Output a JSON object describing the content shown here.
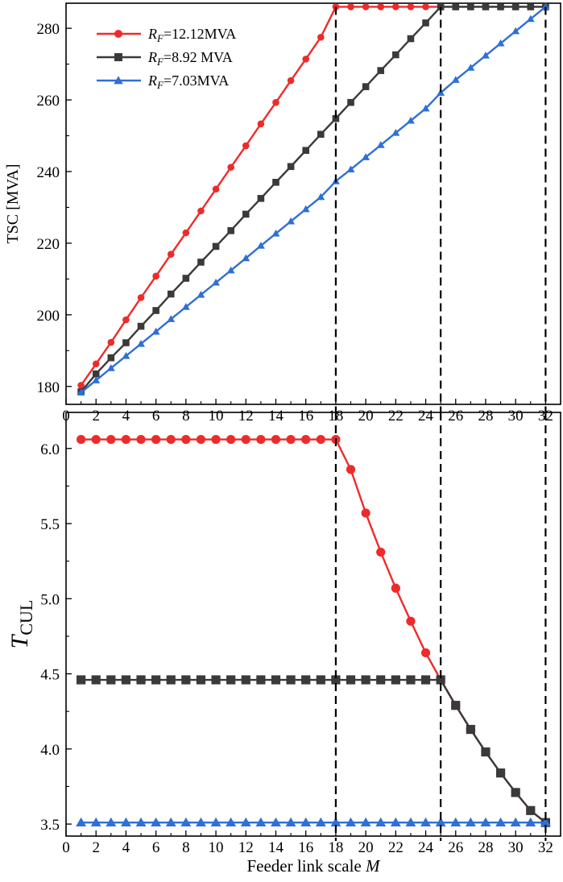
{
  "chart_data": [
    {
      "type": "line",
      "xlabel": "",
      "ylabel": "TSC [MVA]",
      "xlim": [
        0,
        33
      ],
      "ylim": [
        175,
        287
      ],
      "xticks": [
        0,
        2,
        4,
        6,
        8,
        10,
        12,
        14,
        16,
        18,
        20,
        22,
        24,
        26,
        28,
        30,
        32
      ],
      "yticks": [
        180,
        200,
        220,
        240,
        260,
        280
      ],
      "vlines": [
        18,
        25,
        32
      ],
      "legend_position": "top-left",
      "legend_labels": {
        "s0": {
          "symbol": "R",
          "sub": "F",
          "text": "=12.12MVA"
        },
        "s1": {
          "symbol": "R",
          "sub": "F",
          "text": "=8.92 MVA"
        },
        "s2": {
          "symbol": "R",
          "sub": "F",
          "text": "=7.03MVA"
        }
      },
      "series": [
        {
          "name": "RF=12.12MVA",
          "color": "#ee2b2b",
          "marker": "circle",
          "x": [
            1,
            2,
            3,
            4,
            5,
            6,
            7,
            8,
            9,
            10,
            11,
            12,
            13,
            14,
            15,
            16,
            17,
            18,
            19,
            20,
            21,
            22,
            23,
            24,
            25,
            26,
            27,
            28,
            29,
            30,
            31,
            32
          ],
          "y": [
            180.3,
            186.3,
            192.3,
            198.6,
            204.8,
            210.8,
            216.9,
            222.9,
            229.0,
            235.1,
            241.2,
            247.2,
            253.3,
            259.3,
            265.4,
            271.4,
            277.5,
            286,
            286,
            286,
            286,
            286,
            286,
            286,
            286,
            286,
            286,
            286,
            286,
            286,
            286,
            286
          ]
        },
        {
          "name": "RF=8.92 MVA",
          "color": "#3a3a3a",
          "marker": "square",
          "x": [
            1,
            2,
            3,
            4,
            5,
            6,
            7,
            8,
            9,
            10,
            11,
            12,
            13,
            14,
            15,
            16,
            17,
            18,
            19,
            20,
            21,
            22,
            23,
            24,
            25,
            26,
            27,
            28,
            29,
            30,
            31,
            32
          ],
          "y": [
            178.5,
            183.5,
            188.0,
            192.2,
            196.8,
            201.2,
            205.8,
            210.2,
            214.7,
            219.1,
            223.5,
            228.1,
            232.5,
            237.0,
            241.4,
            245.9,
            250.4,
            254.8,
            259.3,
            263.7,
            268.2,
            272.6,
            277.1,
            281.5,
            286,
            286,
            286,
            286,
            286,
            286,
            286,
            286
          ]
        },
        {
          "name": "RF=7.03MVA",
          "color": "#2f6fd6",
          "marker": "triangle",
          "x": [
            1,
            2,
            3,
            4,
            5,
            6,
            7,
            8,
            9,
            10,
            11,
            12,
            13,
            14,
            15,
            16,
            17,
            18,
            19,
            20,
            21,
            22,
            23,
            24,
            25,
            26,
            27,
            28,
            29,
            30,
            31,
            32
          ],
          "y": [
            178.3,
            181.7,
            185.1,
            188.5,
            191.9,
            195.3,
            198.8,
            202.2,
            205.6,
            209.0,
            212.4,
            215.8,
            219.3,
            222.7,
            226.1,
            229.5,
            232.9,
            237.3,
            240.6,
            244.0,
            247.4,
            250.8,
            254.2,
            257.6,
            262.0,
            265.6,
            269.0,
            272.4,
            275.8,
            279.2,
            282.6,
            286
          ]
        }
      ]
    },
    {
      "type": "line",
      "xlabel_text": "Feeder link scale ",
      "xlabel_var": "M",
      "ylabel_var": "T",
      "ylabel_sub": "CUL",
      "xlim": [
        0,
        33
      ],
      "ylim": [
        3.42,
        6.24
      ],
      "xticks": [
        0,
        2,
        4,
        6,
        8,
        10,
        12,
        14,
        16,
        18,
        20,
        22,
        24,
        26,
        28,
        30,
        32
      ],
      "yticks": [
        3.5,
        4.0,
        4.5,
        5.0,
        5.5,
        6.0
      ],
      "ytick_labels": [
        "3.5",
        "4.0",
        "4.5",
        "5.0",
        "5.5",
        "6.0"
      ],
      "vlines": [
        18,
        25,
        32
      ],
      "series": [
        {
          "name": "RF=12.12MVA",
          "color": "#ee2b2b",
          "marker": "circle",
          "x": [
            1,
            2,
            3,
            4,
            5,
            6,
            7,
            8,
            9,
            10,
            11,
            12,
            13,
            14,
            15,
            16,
            17,
            18,
            19,
            20,
            21,
            22,
            23,
            24,
            25,
            26,
            27,
            28,
            29,
            30,
            31,
            32
          ],
          "y": [
            6.06,
            6.06,
            6.06,
            6.06,
            6.06,
            6.06,
            6.06,
            6.06,
            6.06,
            6.06,
            6.06,
            6.06,
            6.06,
            6.06,
            6.06,
            6.06,
            6.06,
            6.06,
            5.86,
            5.57,
            5.31,
            5.07,
            4.85,
            4.64,
            4.46,
            4.29,
            4.13,
            3.98,
            3.84,
            3.71,
            3.59,
            3.51
          ]
        },
        {
          "name": "RF=8.92 MVA",
          "color": "#3a3a3a",
          "marker": "square",
          "x": [
            1,
            2,
            3,
            4,
            5,
            6,
            7,
            8,
            9,
            10,
            11,
            12,
            13,
            14,
            15,
            16,
            17,
            18,
            19,
            20,
            21,
            22,
            23,
            24,
            25,
            26,
            27,
            28,
            29,
            30,
            31,
            32
          ],
          "y": [
            4.46,
            4.46,
            4.46,
            4.46,
            4.46,
            4.46,
            4.46,
            4.46,
            4.46,
            4.46,
            4.46,
            4.46,
            4.46,
            4.46,
            4.46,
            4.46,
            4.46,
            4.46,
            4.46,
            4.46,
            4.46,
            4.46,
            4.46,
            4.46,
            4.46,
            4.29,
            4.13,
            3.98,
            3.84,
            3.71,
            3.59,
            3.51
          ]
        },
        {
          "name": "RF=7.03MVA",
          "color": "#2f6fd6",
          "marker": "triangle",
          "x": [
            1,
            2,
            3,
            4,
            5,
            6,
            7,
            8,
            9,
            10,
            11,
            12,
            13,
            14,
            15,
            16,
            17,
            18,
            19,
            20,
            21,
            22,
            23,
            24,
            25,
            26,
            27,
            28,
            29,
            30,
            31,
            32
          ],
          "y": [
            3.51,
            3.51,
            3.51,
            3.51,
            3.51,
            3.51,
            3.51,
            3.51,
            3.51,
            3.51,
            3.51,
            3.51,
            3.51,
            3.51,
            3.51,
            3.51,
            3.51,
            3.51,
            3.51,
            3.51,
            3.51,
            3.51,
            3.51,
            3.51,
            3.51,
            3.51,
            3.51,
            3.51,
            3.51,
            3.51,
            3.51,
            3.51
          ]
        }
      ]
    }
  ]
}
